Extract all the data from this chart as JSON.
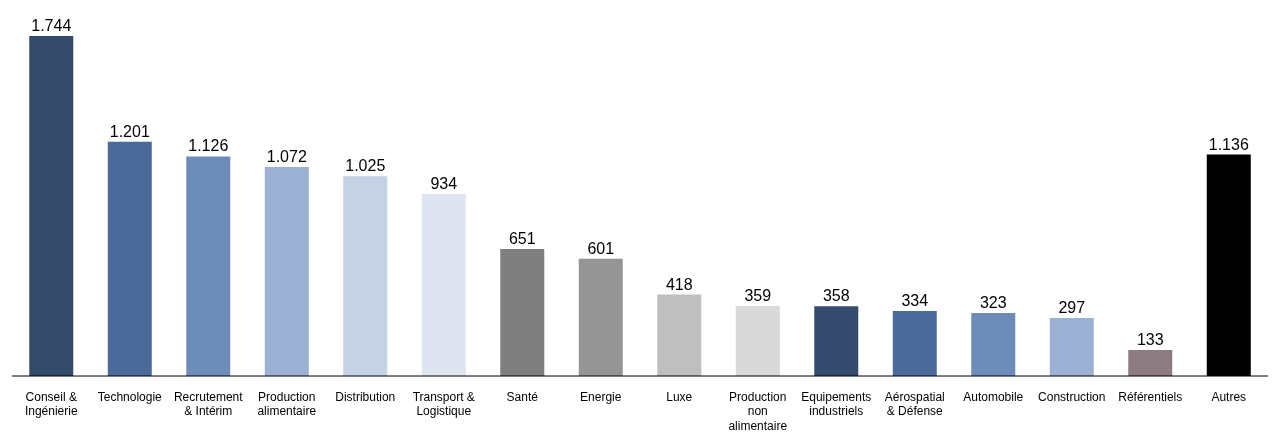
{
  "chart_data": {
    "type": "bar",
    "categories": [
      "Conseil & Ingénierie",
      "Technologie",
      "Recrutement & Intérim",
      "Production alimentaire",
      "Distribution",
      "Transport & Logistique",
      "Santé",
      "Energie",
      "Luxe",
      "Production non alimentaire",
      "Equipements industriels",
      "Aérospatial & Défense",
      "Automobile",
      "Construction",
      "Référentiels",
      "Autres"
    ],
    "values": [
      1744,
      1201,
      1126,
      1072,
      1025,
      934,
      651,
      601,
      418,
      359,
      358,
      334,
      323,
      297,
      133,
      1136
    ],
    "colors": [
      "#334a6b",
      "#4a6a9a",
      "#6d8cba",
      "#9bb0d2",
      "#c5d1e4",
      "#dfe5f0",
      "#7f7f7f",
      "#959595",
      "#bfbfbf",
      "#d9d9d9",
      "#354b6d",
      "#4a6a9a",
      "#6d8cba",
      "#9bb0d2",
      "#8c7b80",
      "#000000"
    ],
    "value_labels": [
      "1.744",
      "1.201",
      "1.126",
      "1.072",
      "1.025",
      "934",
      "651",
      "601",
      "418",
      "359",
      "358",
      "334",
      "323",
      "297",
      "133",
      "1.136"
    ],
    "grid": false
  }
}
